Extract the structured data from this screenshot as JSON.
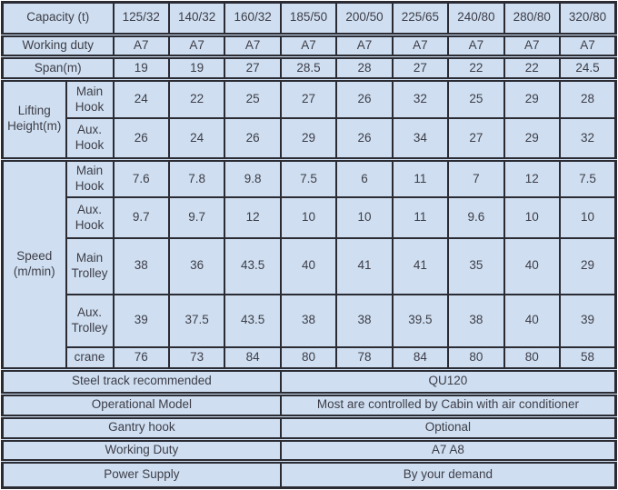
{
  "table": {
    "colors": {
      "background": "#cfdff1",
      "border": "#2b2b33",
      "text": "#3d3d47",
      "page_background": "#ffffff"
    },
    "header_row": {
      "label": "Capacity  (t)",
      "values": [
        "125/32",
        "140/32",
        "160/32",
        "185/50",
        "200/50",
        "225/65",
        "240/80",
        "280/80",
        "320/80"
      ]
    },
    "simple_rows": [
      {
        "label": "Working duty",
        "values": [
          "A7",
          "A7",
          "A7",
          "A7",
          "A7",
          "A7",
          "A7",
          "A7",
          "A7"
        ]
      },
      {
        "label": "Span(m)",
        "values": [
          "19",
          "19",
          "27",
          "28.5",
          "28",
          "27",
          "22",
          "22",
          "24.5"
        ]
      }
    ],
    "groups": [
      {
        "label": "Lifting Height(m)",
        "rows": [
          {
            "label": "Main Hook",
            "values": [
              "24",
              "22",
              "25",
              "27",
              "26",
              "32",
              "25",
              "29",
              "28"
            ]
          },
          {
            "label": "Aux. Hook",
            "values": [
              "26",
              "24",
              "26",
              "29",
              "26",
              "34",
              "27",
              "29",
              "32"
            ]
          }
        ]
      },
      {
        "label": "Speed (m/min)",
        "rows": [
          {
            "label": "Main Hook",
            "values": [
              "7.6",
              "7.8",
              "9.8",
              "7.5",
              "6",
              "11",
              "7",
              "12",
              "7.5"
            ]
          },
          {
            "label": "Aux. Hook",
            "values": [
              "9.7",
              "9.7",
              "12",
              "10",
              "10",
              "11",
              "9.6",
              "10",
              "10"
            ]
          },
          {
            "label": "Main Trolley",
            "values": [
              "38",
              "36",
              "43.5",
              "40",
              "41",
              "41",
              "35",
              "40",
              "29"
            ]
          },
          {
            "label": "Aux. Trolley",
            "values": [
              "39",
              "37.5",
              "43.5",
              "38",
              "38",
              "39.5",
              "38",
              "40",
              "39"
            ]
          },
          {
            "label": "crane",
            "values": [
              "76",
              "73",
              "84",
              "80",
              "78",
              "84",
              "80",
              "80",
              "58"
            ]
          }
        ]
      }
    ],
    "footer_rows": [
      {
        "label": "Steel track recommended",
        "value": "QU120"
      },
      {
        "label": "Operational Model",
        "value": "Most are controlled by Cabin with air conditioner"
      },
      {
        "label": "Gantry hook",
        "value": "Optional"
      },
      {
        "label": "Working Duty",
        "value": "A7 A8"
      },
      {
        "label": "Power Supply",
        "value": "By your demand"
      }
    ]
  }
}
